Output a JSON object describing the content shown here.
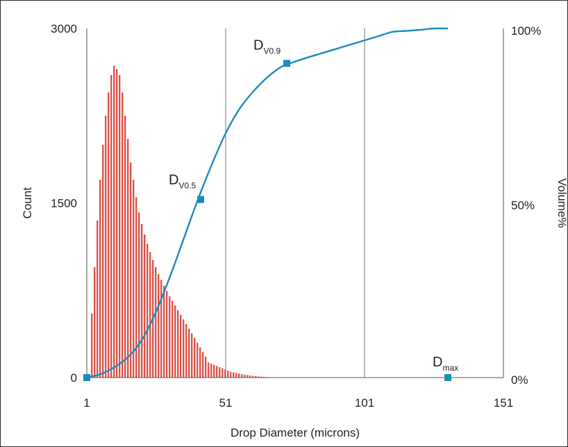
{
  "chart_data": {
    "type": "bar",
    "xlabel": "Drop Diameter (microns)",
    "ylabel_left": "Count",
    "ylabel_right": "Volume%",
    "x_ticks": [
      "1",
      "51",
      "101",
      "151"
    ],
    "x_tick_values": [
      1,
      51,
      101,
      151
    ],
    "xlim": [
      1,
      151
    ],
    "y_left_ticks": [
      "3000",
      "1500",
      "0"
    ],
    "y_left_tick_values": [
      3000,
      1500,
      0
    ],
    "ylim_left": [
      0,
      3000
    ],
    "y_right_ticks": [
      "100%",
      "50%",
      "0%"
    ],
    "y_right_tick_values": [
      100,
      50,
      0
    ],
    "ylim_right": [
      0,
      100
    ],
    "vertical_gridlines_at": [
      51,
      101
    ],
    "colors": {
      "bars": "#d9534a",
      "curve": "#1a8bbf",
      "markers": "#1a8bbf",
      "axis": "#555555",
      "grid": "#6c7780"
    },
    "series": [
      {
        "kind": "histogram",
        "x": [
          3,
          4,
          5,
          6,
          7,
          8,
          9,
          10,
          11,
          12,
          13,
          14,
          15,
          16,
          17,
          18,
          19,
          20,
          21,
          22,
          23,
          24,
          25,
          26,
          27,
          28,
          29,
          30,
          31,
          32,
          33,
          34,
          35,
          36,
          37,
          38,
          39,
          40,
          41,
          42,
          43,
          44,
          45,
          46,
          47,
          48,
          49,
          50,
          51,
          52,
          53,
          54,
          55,
          56,
          57,
          58,
          59,
          60,
          61,
          62,
          63,
          64,
          65,
          66,
          67,
          68,
          69,
          70,
          71,
          72,
          73
        ],
        "values": [
          550,
          950,
          1350,
          1700,
          2000,
          2250,
          2450,
          2600,
          2680,
          2650,
          2600,
          2450,
          2250,
          2050,
          1850,
          1700,
          1550,
          1420,
          1320,
          1230,
          1150,
          1080,
          1010,
          950,
          890,
          840,
          790,
          745,
          700,
          660,
          620,
          580,
          540,
          500,
          460,
          420,
          380,
          340,
          300,
          260,
          220,
          180,
          130,
          120,
          110,
          100,
          90,
          80,
          70,
          60,
          50,
          45,
          40,
          35,
          30,
          26,
          22,
          18,
          15,
          12,
          10,
          8,
          6,
          5,
          4,
          3,
          2,
          2,
          1,
          1,
          1
        ]
      },
      {
        "kind": "cumulative_volume_line",
        "x": [
          1,
          6,
          11,
          16,
          21,
          26,
          31,
          36,
          41,
          46,
          51,
          56,
          61,
          66,
          71,
          76,
          81,
          86,
          91,
          96,
          101,
          106,
          111,
          116,
          121,
          126,
          131
        ],
        "values": [
          0,
          1,
          3,
          6,
          11,
          19,
          29,
          40,
          51,
          61,
          70,
          77,
          82,
          86,
          89,
          90.5,
          91.8,
          93,
          94.2,
          95.4,
          96.6,
          97.8,
          99,
          99.3,
          99.6,
          100,
          100
        ]
      }
    ],
    "annotations": [
      {
        "base": "D",
        "sub": "V0.5",
        "x": 42,
        "volume": 51
      },
      {
        "base": "D",
        "sub": "V0.9",
        "x": 73,
        "volume": 90
      },
      {
        "base": "D",
        "sub": "max",
        "x": 131,
        "volume": 0
      }
    ]
  }
}
